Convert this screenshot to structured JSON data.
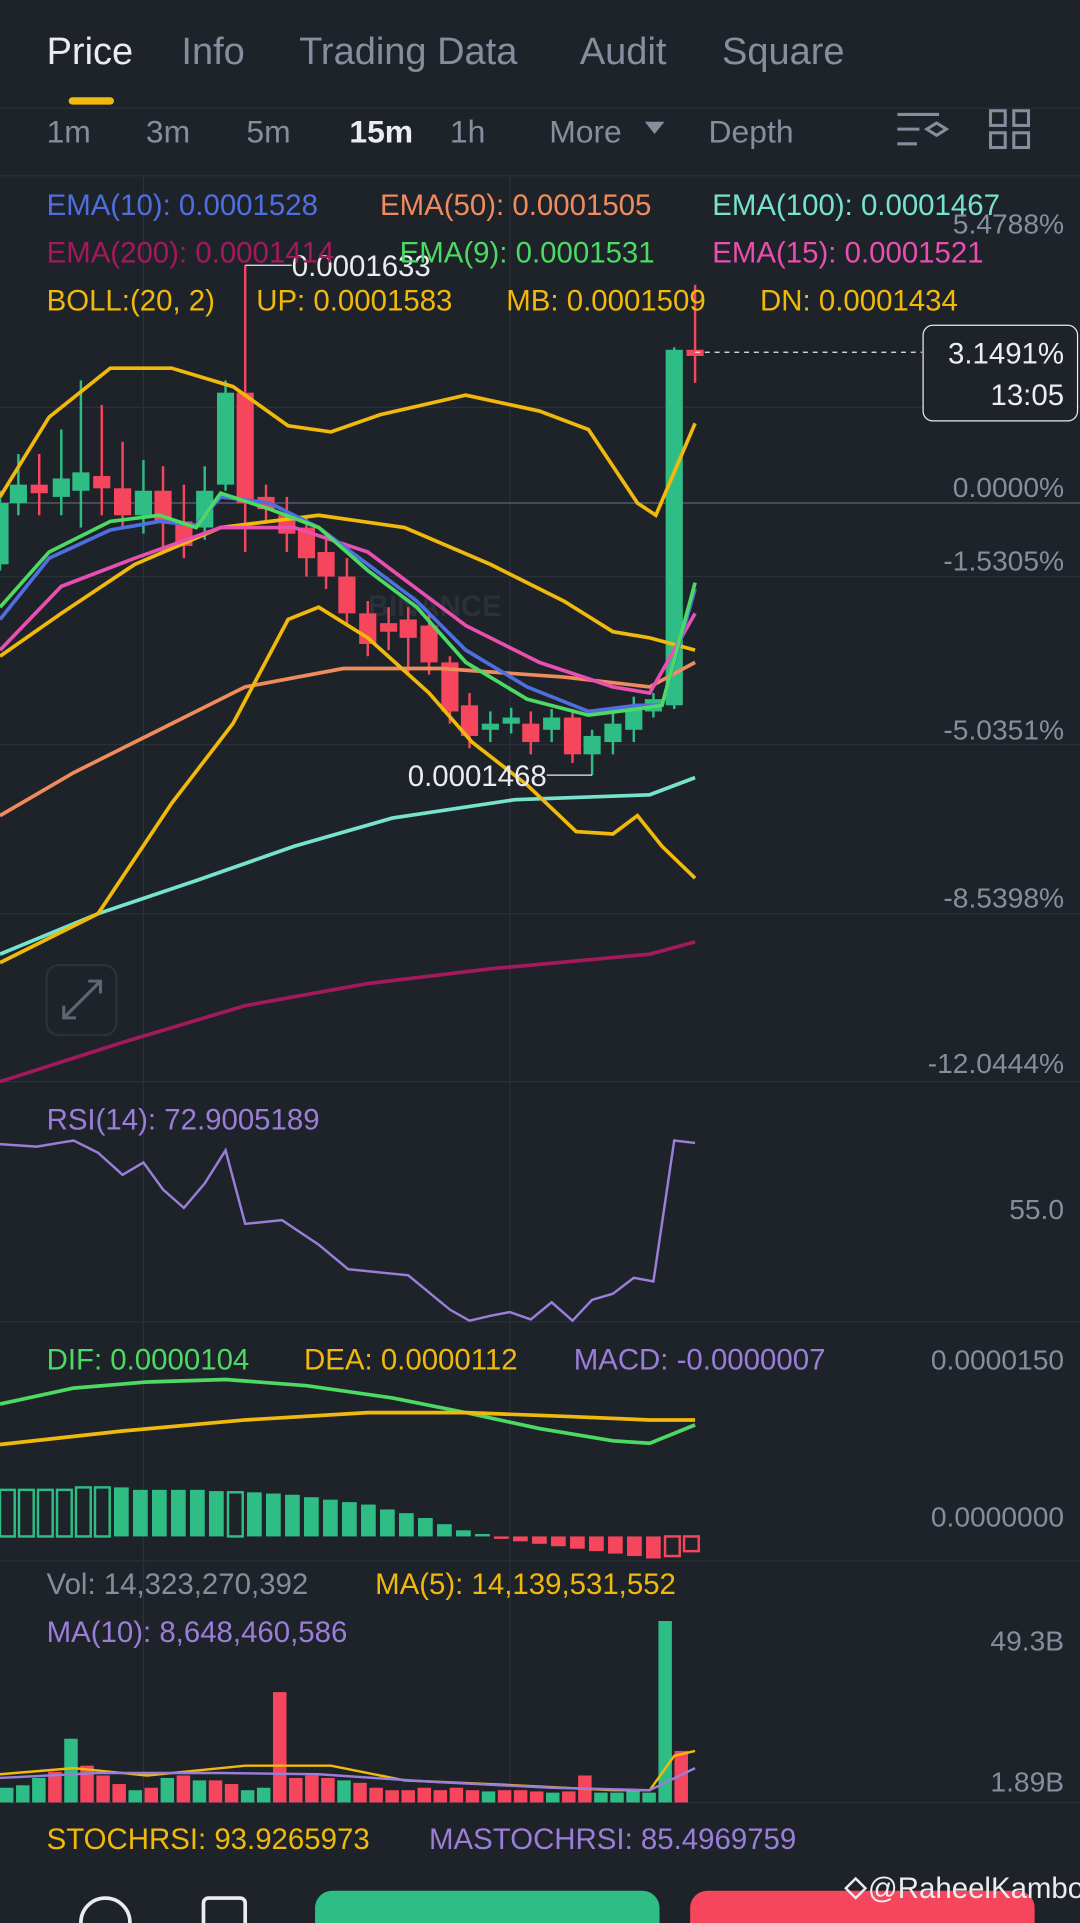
{
  "tabs": [
    "Price",
    "Info",
    "Trading Data",
    "Audit",
    "Square"
  ],
  "intervals": [
    "1m",
    "3m",
    "5m",
    "15m",
    "1h",
    "More",
    "Depth"
  ],
  "indicators": {
    "ema10": "EMA(10): 0.0001528",
    "ema50": "EMA(50): 0.0001505",
    "ema100": "EMA(100): 0.0001467",
    "ema200": "EMA(200): 0.0001414",
    "ema9": "EMA(9): 0.0001531",
    "ema15": "EMA(15): 0.0001521",
    "boll": "BOLL:(20, 2)",
    "up": "UP: 0.0001583",
    "mb": "MB: 0.0001509",
    "dn": "DN: 0.0001434"
  },
  "price_axis": [
    "5.4788%",
    "0.0000%",
    "-1.5305%",
    "-5.0351%",
    "-8.5398%",
    "-12.0444%"
  ],
  "price_tag": {
    "change": "3.1491%",
    "countdown": "13:05"
  },
  "annotations": {
    "high": "0.0001633",
    "low": "0.0001468"
  },
  "watermark": "BINANCE",
  "rsi": {
    "label": "RSI(14): 72.9005189",
    "axis": "55.0"
  },
  "macd": {
    "dif": "DIF: 0.0000104",
    "dea": "DEA: 0.0000112",
    "macd": "MACD: -0.0000007",
    "axis": [
      "0.0000150",
      "0.0000000"
    ]
  },
  "volume": {
    "vol": "Vol: 14,323,270,392",
    "ma5": "MA(5): 14,139,531,552",
    "ma10": "MA(10): 8,648,460,586",
    "axis": [
      "49.3B",
      "1.89B"
    ]
  },
  "stochrsi": {
    "stoch": "STOCHRSI: 93.9265973",
    "mastoch": "MASTOCHRSI: 85.4969759"
  },
  "watermark_user": "@RaheelKamboh"
}
